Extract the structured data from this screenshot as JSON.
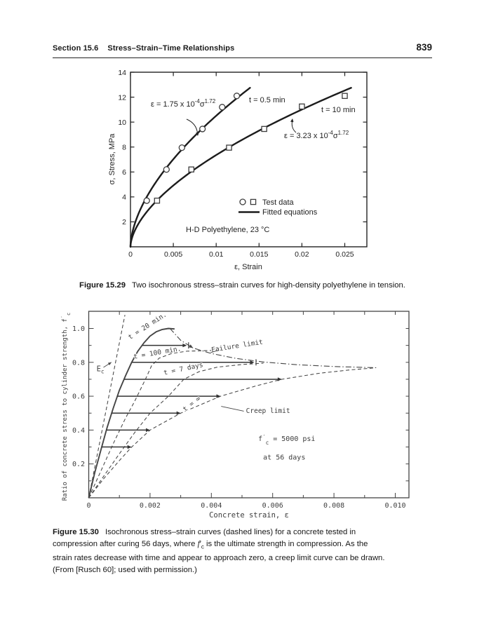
{
  "page": {
    "header": {
      "section": "Section 15.6",
      "title": "Stress–Strain–Time Relationships",
      "page_number": "839"
    },
    "captions": {
      "fig29": {
        "label": "Figure 15.29",
        "text": "Two isochronous stress–strain curves for high-density polyethylene in tension."
      },
      "fig30": {
        "label": "Figure 15.30",
        "line1": "Isochronous stress–strain curves (dashed lines) for a concrete tested in",
        "line2_pre": "compression after curing 56 days, where ",
        "sym_f": "f",
        "sym_p": "′",
        "sym_c": "c",
        "line2_post": " is the ultimate strength in compression. As the",
        "line3": "strain rates decrease with time and appear to approach zero, a creep limit curve can be drawn.",
        "line4": "(From [Rusch 60]; used with permission.)"
      }
    }
  },
  "chart_data": [
    {
      "type": "line",
      "title": "Two isochronous stress-strain curves for high-density polyethylene in tension",
      "xlabel": "ε, Strain",
      "ylabel": "σ, Stress, MPa",
      "xlim": [
        0,
        0.0276
      ],
      "ylim": [
        0,
        14
      ],
      "xtick_values": [
        0,
        0.005,
        0.01,
        0.015,
        0.02,
        0.025
      ],
      "xticks": [
        "0",
        "0.005",
        "0.01",
        "0.015",
        "0.02",
        "0.025"
      ],
      "ytick_values": [
        2,
        4,
        6,
        8,
        10,
        12,
        14
      ],
      "grid": false,
      "material_note": "H-D Polyethylene, 23 °C",
      "legend": {
        "test_data": "Test data",
        "fitted": "Fitted equations"
      },
      "series": [
        {
          "name": "t = 0.5 min",
          "marker": "circle",
          "fit": {
            "coef_value": 0.000175,
            "exponent_value": 1.72,
            "sigma_end": 12.85,
            "equation_parts": {
              "lead": "ε = 1.75 x 10",
              "exp": "-4",
              "base": "σ",
              "power": "1.72"
            }
          },
          "points": [
            [
              0.0019,
              3.7
            ],
            [
              0.0042,
              6.2
            ],
            [
              0.006,
              7.95
            ],
            [
              0.0084,
              9.45
            ],
            [
              0.0107,
              11.2
            ],
            [
              0.0124,
              12.1
            ]
          ]
        },
        {
          "name": "t = 10 min",
          "marker": "square",
          "fit": {
            "coef_value": 0.000323,
            "exponent_value": 1.72,
            "sigma_end": 12.8,
            "equation_parts": {
              "lead": "ε = 3.23 x 10",
              "exp": "-4",
              "base": "σ",
              "power": "1.72"
            }
          },
          "points": [
            [
              0.0031,
              3.7
            ],
            [
              0.0071,
              6.2
            ],
            [
              0.0115,
              7.95
            ],
            [
              0.0156,
              9.45
            ],
            [
              0.02,
              11.25
            ],
            [
              0.025,
              12.1
            ]
          ]
        }
      ]
    },
    {
      "type": "line",
      "title": "Isochronous stress-strain curves (dashed lines) for concrete in compression",
      "xlabel": "Concrete strain, ε",
      "ylabel_main": "Ratio of concrete stress to cylinder strength, f",
      "ylabel_sup": "′",
      "ylabel_sub": "c",
      "xlim": [
        0,
        0.01045
      ],
      "ylim": [
        0,
        1.104
      ],
      "xtick_values": [
        0,
        0.002,
        0.004,
        0.006,
        0.008,
        0.01
      ],
      "xticks": [
        "0",
        "0.002",
        "0.004",
        "0.006",
        "0.008",
        "0.010"
      ],
      "ytick_values": [
        0.2,
        0.4,
        0.6,
        0.8,
        1.0
      ],
      "yticks": [
        "0.2",
        "0.4",
        "0.6",
        "0.8",
        "1.0"
      ],
      "grid": false,
      "note_line1_pre": "f",
      "note_line1_sup": "′",
      "note_line1_sub": "c",
      "note_line1_post": " = 5000 psi",
      "note_line2": "at 56 days",
      "curves": [
        {
          "name": "Ec initial modulus line",
          "style": "dashed",
          "points": [
            [
              0,
              0
            ],
            [
              0.00118,
              1.08
            ]
          ]
        },
        {
          "name": "t = 20 min.",
          "style": "solid",
          "points": [
            [
              0,
              0
            ],
            [
              0.0002,
              0.15
            ],
            [
              0.0004,
              0.285
            ],
            [
              0.0006,
              0.415
            ],
            [
              0.0008,
              0.53
            ],
            [
              0.001,
              0.635
            ],
            [
              0.0012,
              0.72
            ],
            [
              0.0014,
              0.8
            ],
            [
              0.0016,
              0.865
            ],
            [
              0.0018,
              0.915
            ],
            [
              0.002,
              0.955
            ],
            [
              0.0022,
              0.98
            ],
            [
              0.0024,
              0.994
            ],
            [
              0.0026,
              1.0
            ],
            [
              0.0028,
              0.997
            ]
          ]
        },
        {
          "name": "t = 100 min.",
          "style": "dashed",
          "points": [
            [
              0,
              0
            ],
            [
              0.0004,
              0.16
            ],
            [
              0.0008,
              0.32
            ],
            [
              0.0012,
              0.47
            ],
            [
              0.0015,
              0.57
            ],
            [
              0.00185,
              0.7
            ],
            [
              0.00205,
              0.78
            ],
            [
              0.0023,
              0.825
            ],
            [
              0.0027,
              0.852
            ],
            [
              0.0032,
              0.866
            ],
            [
              0.004,
              0.87
            ]
          ]
        },
        {
          "name": "t = 7 days",
          "style": "dashed",
          "points": [
            [
              0,
              0
            ],
            [
              0.0005,
              0.13
            ],
            [
              0.001,
              0.26
            ],
            [
              0.0015,
              0.385
            ],
            [
              0.002,
              0.5
            ],
            [
              0.0026,
              0.6
            ],
            [
              0.0031,
              0.7
            ],
            [
              0.0036,
              0.745
            ],
            [
              0.0042,
              0.772
            ],
            [
              0.005,
              0.787
            ],
            [
              0.0057,
              0.795
            ]
          ]
        },
        {
          "name": "t = ∞ (creep limit)",
          "style": "dashed",
          "points": [
            [
              0,
              0
            ],
            [
              0.0005,
              0.115
            ],
            [
              0.001,
              0.22
            ],
            [
              0.0014,
              0.3
            ],
            [
              0.002,
              0.4
            ],
            [
              0.003,
              0.5
            ],
            [
              0.0043,
              0.6
            ],
            [
              0.0055,
              0.663
            ],
            [
              0.0063,
              0.7
            ],
            [
              0.0075,
              0.735
            ],
            [
              0.0085,
              0.755
            ],
            [
              0.0093,
              0.767
            ]
          ]
        },
        {
          "name": "Failure limit",
          "style": "dashdot",
          "arrow_at": 2,
          "points": [
            [
              0.00265,
              1.0
            ],
            [
              0.003,
              0.93
            ],
            [
              0.0034,
              0.885
            ],
            [
              0.004,
              0.852
            ],
            [
              0.0048,
              0.823
            ],
            [
              0.0057,
              0.802
            ],
            [
              0.0068,
              0.786
            ],
            [
              0.008,
              0.775
            ],
            [
              0.0094,
              0.768
            ]
          ]
        }
      ],
      "relaxation_arrows": [
        [
          0.00042,
          0.0014,
          0.3
        ],
        [
          0.00058,
          0.002,
          0.4
        ],
        [
          0.00075,
          0.003,
          0.5
        ],
        [
          0.00093,
          0.0043,
          0.6
        ],
        [
          0.00115,
          0.0063,
          0.7
        ],
        [
          0.0014,
          0.0054,
          0.8
        ],
        [
          0.00175,
          0.0032,
          0.9
        ]
      ],
      "labels": [
        {
          "text": "t = 20 min.",
          "x": 0.00195,
          "y": 1.005,
          "rot": -33
        },
        {
          "text": "t = 100 min.",
          "x": 0.00225,
          "y": 0.845,
          "rot": -10
        },
        {
          "text": "t = 7 days",
          "x": 0.0031,
          "y": 0.75,
          "rot": -12
        },
        {
          "text": "t = ∞",
          "x": 0.0034,
          "y": 0.545,
          "rot": -38
        },
        {
          "text": "Failure limit",
          "x": 0.00485,
          "y": 0.885,
          "rot": -9,
          "leader": [
            [
              0.00425,
              0.872
            ],
            [
              0.00398,
              0.858
            ]
          ]
        },
        {
          "text": "Creep limit",
          "x": 0.00585,
          "y": 0.502,
          "rot": 0,
          "leader": [
            [
              0.00506,
              0.512
            ],
            [
              0.00432,
              0.54
            ]
          ]
        },
        {
          "text": "Ec",
          "main": "E",
          "sub": "c",
          "x": 0.00038,
          "y": 0.748,
          "rot": 0,
          "leader": [
            [
              0.00048,
              0.77
            ],
            [
              0.00074,
              0.8
            ]
          ],
          "leader_arrow": true
        }
      ]
    }
  ]
}
